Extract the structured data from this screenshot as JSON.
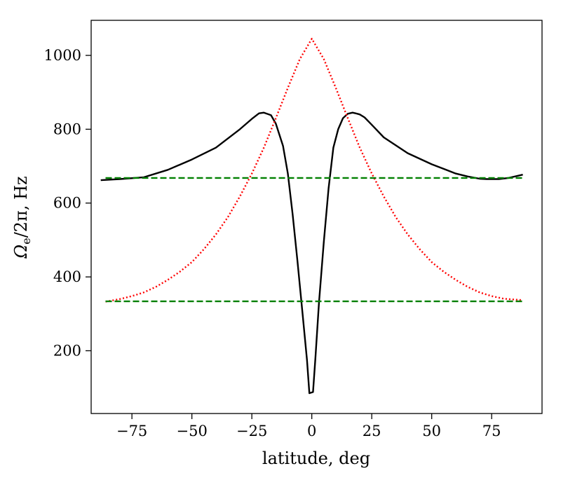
{
  "chart_data": {
    "type": "line",
    "title": "",
    "xlabel": "latitude, deg",
    "ylabel": "Ω_e/2π, Hz",
    "ylabel_main": "Ω",
    "ylabel_sub": "e",
    "ylabel_rest": "/2π, Hz",
    "xlim": [
      -92,
      96
    ],
    "ylim": [
      30,
      1095
    ],
    "xticks": [
      -75,
      -50,
      -25,
      0,
      25,
      50,
      75
    ],
    "xtick_labels": [
      "−75",
      "−50",
      "−25",
      "0",
      "25",
      "50",
      "75"
    ],
    "yticks": [
      200,
      400,
      600,
      800,
      1000
    ],
    "ytick_labels": [
      "200",
      "400",
      "600",
      "800",
      "1000"
    ],
    "grid": false,
    "legend": "none",
    "series": [
      {
        "color": "#000000",
        "style": "solid",
        "x": [
          -88,
          -80,
          -70,
          -60,
          -50,
          -40,
          -30,
          -25,
          -22,
          -20,
          -17,
          -15,
          -12,
          -10,
          -8,
          -6,
          -4,
          -2,
          -1,
          0.5,
          1.5,
          3,
          5,
          7,
          9,
          11,
          13,
          15,
          17,
          19,
          20,
          22,
          25,
          30,
          40,
          50,
          56,
          60,
          65,
          70,
          73,
          78,
          82,
          88
        ],
        "y": [
          662,
          665,
          670,
          690,
          718,
          750,
          800,
          828,
          843,
          845,
          838,
          815,
          755,
          680,
          570,
          445,
          310,
          175,
          85,
          88,
          180,
          330,
          495,
          640,
          750,
          800,
          830,
          842,
          845,
          842,
          840,
          832,
          812,
          778,
          735,
          705,
          690,
          680,
          672,
          666,
          665,
          665,
          668,
          677
        ]
      },
      {
        "color": "#ff0000",
        "style": "dotted",
        "x": [
          -86,
          -80,
          -75,
          -70,
          -65,
          -60,
          -55,
          -50,
          -45,
          -40,
          -35,
          -30,
          -25,
          -20,
          -15,
          -10,
          -5,
          0,
          5,
          10,
          15,
          20,
          25,
          30,
          35,
          40,
          45,
          50,
          55,
          60,
          65,
          70,
          75,
          80,
          88
        ],
        "y": [
          333,
          340,
          348,
          358,
          373,
          392,
          414,
          440,
          475,
          515,
          562,
          618,
          680,
          750,
          830,
          912,
          990,
          1045,
          990,
          912,
          830,
          750,
          680,
          618,
          562,
          515,
          475,
          440,
          414,
          392,
          373,
          358,
          348,
          341,
          337
        ]
      },
      {
        "color": "#008000",
        "style": "dashed",
        "x": [
          -86,
          88
        ],
        "y": [
          668,
          668
        ]
      },
      {
        "color": "#008000",
        "style": "dashed",
        "x": [
          -86,
          88
        ],
        "y": [
          334,
          334
        ]
      }
    ]
  }
}
